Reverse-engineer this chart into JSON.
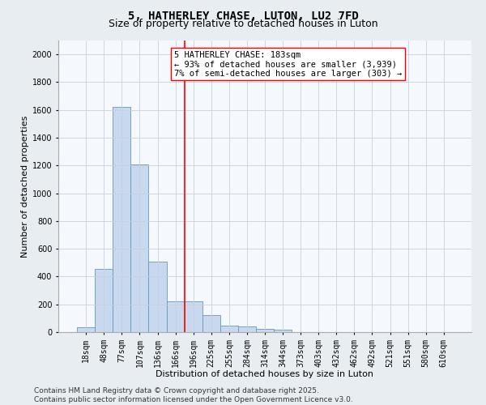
{
  "title": "5, HATHERLEY CHASE, LUTON, LU2 7FD",
  "subtitle": "Size of property relative to detached houses in Luton",
  "xlabel": "Distribution of detached houses by size in Luton",
  "ylabel": "Number of detached properties",
  "categories": [
    "18sqm",
    "48sqm",
    "77sqm",
    "107sqm",
    "136sqm",
    "166sqm",
    "196sqm",
    "225sqm",
    "255sqm",
    "284sqm",
    "314sqm",
    "344sqm",
    "373sqm",
    "403sqm",
    "432sqm",
    "462sqm",
    "492sqm",
    "521sqm",
    "551sqm",
    "580sqm",
    "610sqm"
  ],
  "values": [
    35,
    455,
    1620,
    1205,
    505,
    220,
    220,
    125,
    47,
    38,
    22,
    18,
    0,
    0,
    0,
    0,
    0,
    0,
    0,
    0,
    0
  ],
  "bar_color": "#c8d8ee",
  "bar_edge_color": "#6699bb",
  "vline_x_index": 5.5,
  "vline_color": "red",
  "annotation_line1": "5 HATHERLEY CHASE: 183sqm",
  "annotation_line2": "← 93% of detached houses are smaller (3,939)",
  "annotation_line3": "7% of semi-detached houses are larger (303) →",
  "ylim": [
    0,
    2100
  ],
  "yticks": [
    0,
    200,
    400,
    600,
    800,
    1000,
    1200,
    1400,
    1600,
    1800,
    2000
  ],
  "footer_line1": "Contains HM Land Registry data © Crown copyright and database right 2025.",
  "footer_line2": "Contains public sector information licensed under the Open Government Licence v3.0.",
  "bg_color": "#e8edf2",
  "plot_bg_color": "#f5f8fc",
  "grid_color": "#c8d0dc",
  "title_fontsize": 10,
  "subtitle_fontsize": 9,
  "label_fontsize": 8,
  "tick_fontsize": 7,
  "footer_fontsize": 6.5,
  "annotation_fontsize": 7.5
}
